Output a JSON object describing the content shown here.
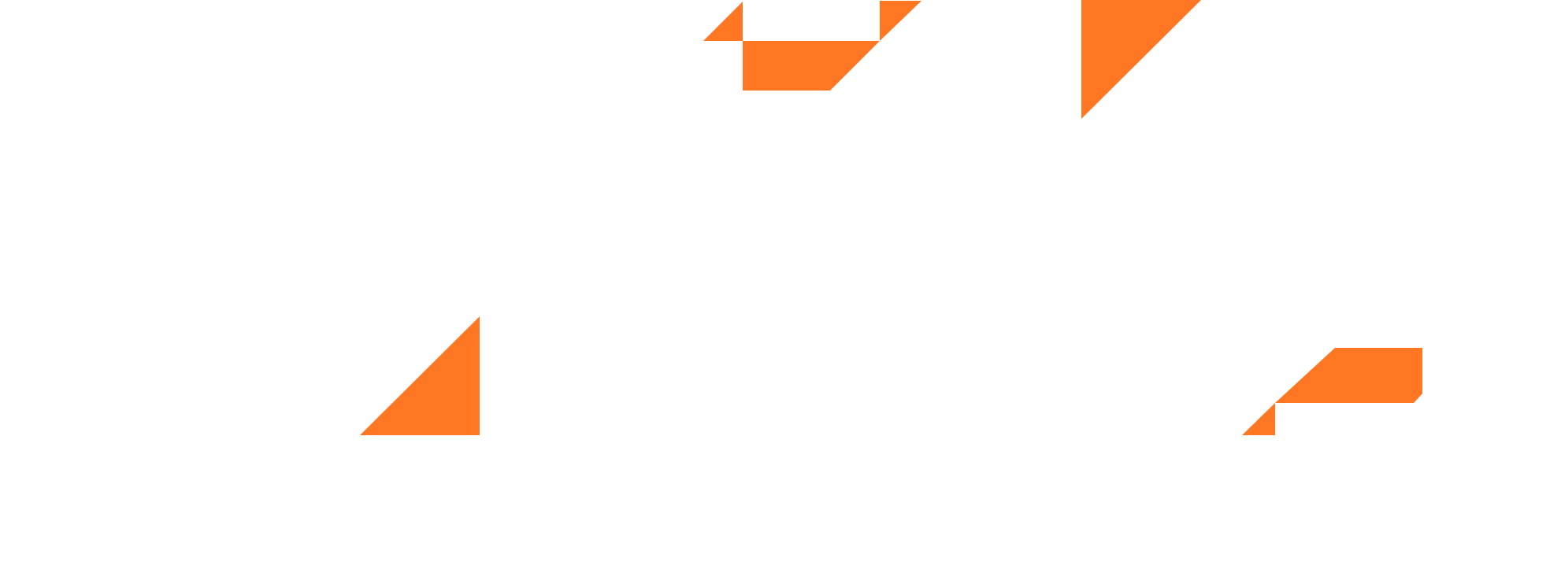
{
  "colors": {
    "accent": "#FF7722",
    "background": "transparent"
  },
  "graphic": {
    "name": "orange-triangle-fragments",
    "shape_count": 8
  }
}
